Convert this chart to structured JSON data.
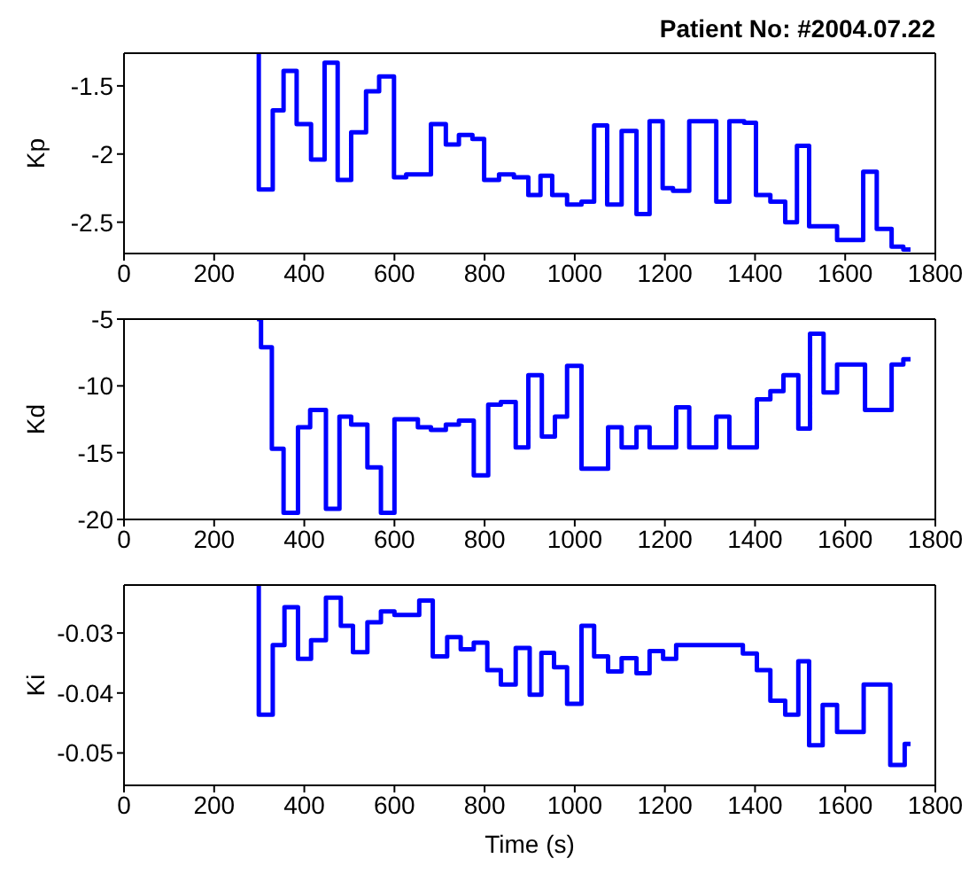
{
  "chart_data": [
    {
      "type": "step",
      "title": "Patient No: #2004.07.22",
      "ylabel": "Kp",
      "color": "#0000ff",
      "xlim": [
        0,
        1800
      ],
      "xticks": [
        0,
        200,
        400,
        600,
        800,
        1000,
        1200,
        1400,
        1600,
        1800
      ],
      "ylim": [
        -2.73,
        -1.26
      ],
      "yticks": [
        -2.5,
        -2,
        -1.5
      ],
      "x": [
        295,
        299,
        330,
        354,
        383,
        415,
        445,
        474,
        504,
        537,
        566,
        599,
        626,
        681,
        714,
        743,
        773,
        799,
        832,
        865,
        897,
        924,
        950,
        983,
        1015,
        1043,
        1072,
        1104,
        1137,
        1166,
        1195,
        1218,
        1254,
        1314,
        1343,
        1376,
        1402,
        1434,
        1467,
        1493,
        1520,
        1582,
        1640,
        1670,
        1703,
        1729,
        1745
      ],
      "values": [
        -1.26,
        -2.26,
        -1.68,
        -1.39,
        -1.78,
        -2.04,
        -1.33,
        -2.19,
        -1.84,
        -1.54,
        -1.43,
        -2.17,
        -2.15,
        -1.78,
        -1.93,
        -1.86,
        -1.89,
        -2.19,
        -2.15,
        -2.17,
        -2.3,
        -2.16,
        -2.3,
        -2.37,
        -2.35,
        -1.79,
        -2.37,
        -1.83,
        -2.44,
        -1.76,
        -2.25,
        -2.27,
        -1.76,
        -2.35,
        -1.76,
        -1.77,
        -2.3,
        -2.35,
        -2.5,
        -1.94,
        -2.53,
        -2.63,
        -2.13,
        -2.55,
        -2.68,
        -2.7,
        -2.7
      ]
    },
    {
      "type": "step",
      "ylabel": "Kd",
      "color": "#0000ff",
      "xlim": [
        0,
        1800
      ],
      "xticks": [
        0,
        200,
        400,
        600,
        800,
        1000,
        1200,
        1400,
        1600,
        1800
      ],
      "ylim": [
        -20,
        -5
      ],
      "yticks": [
        -20,
        -15,
        -10,
        -5
      ],
      "x": [
        295,
        304,
        328,
        354,
        386,
        413,
        448,
        478,
        504,
        540,
        570,
        600,
        652,
        681,
        714,
        743,
        776,
        808,
        836,
        869,
        897,
        927,
        956,
        983,
        1015,
        1074,
        1104,
        1137,
        1166,
        1225,
        1254,
        1314,
        1343,
        1404,
        1434,
        1463,
        1496,
        1522,
        1552,
        1582,
        1644,
        1703,
        1729,
        1745
      ],
      "values": [
        -5,
        -7.1,
        -14.7,
        -19.5,
        -13.1,
        -11.8,
        -19.2,
        -12.3,
        -12.9,
        -16.1,
        -19.5,
        -12.5,
        -13.1,
        -13.3,
        -12.9,
        -12.6,
        -16.7,
        -11.4,
        -11.2,
        -14.6,
        -9.2,
        -13.8,
        -12.3,
        -8.5,
        -16.2,
        -13.1,
        -14.6,
        -13.1,
        -14.6,
        -11.6,
        -14.6,
        -12.3,
        -14.6,
        -11,
        -10.4,
        -9.2,
        -13.2,
        -6.1,
        -10.5,
        -8.4,
        -11.8,
        -8.4,
        -8,
        -8
      ]
    },
    {
      "type": "step",
      "ylabel": "Ki",
      "xlabel": "Time (s)",
      "color": "#0000ff",
      "xlim": [
        0,
        1800
      ],
      "xticks": [
        0,
        200,
        400,
        600,
        800,
        1000,
        1200,
        1400,
        1600,
        1800
      ],
      "ylim": [
        -0.0554,
        -0.022
      ],
      "yticks": [
        -0.05,
        -0.04,
        -0.03
      ],
      "x": [
        295,
        299,
        330,
        356,
        386,
        415,
        448,
        481,
        508,
        540,
        570,
        600,
        655,
        685,
        717,
        747,
        776,
        806,
        836,
        869,
        900,
        926,
        954,
        983,
        1015,
        1043,
        1074,
        1104,
        1137,
        1166,
        1196,
        1225,
        1373,
        1404,
        1434,
        1467,
        1496,
        1520,
        1550,
        1582,
        1641,
        1700,
        1732,
        1745
      ],
      "values": [
        -0.022,
        -0.0436,
        -0.032,
        -0.0257,
        -0.0343,
        -0.0312,
        -0.0241,
        -0.0288,
        -0.0332,
        -0.0282,
        -0.0264,
        -0.027,
        -0.0246,
        -0.0339,
        -0.0307,
        -0.0327,
        -0.0316,
        -0.0362,
        -0.0386,
        -0.0325,
        -0.0403,
        -0.0333,
        -0.0357,
        -0.0418,
        -0.0288,
        -0.0339,
        -0.0364,
        -0.0342,
        -0.0367,
        -0.033,
        -0.0343,
        -0.032,
        -0.0334,
        -0.0362,
        -0.0413,
        -0.0436,
        -0.0347,
        -0.0487,
        -0.042,
        -0.0465,
        -0.0386,
        -0.052,
        -0.0485,
        -0.0485
      ]
    }
  ]
}
